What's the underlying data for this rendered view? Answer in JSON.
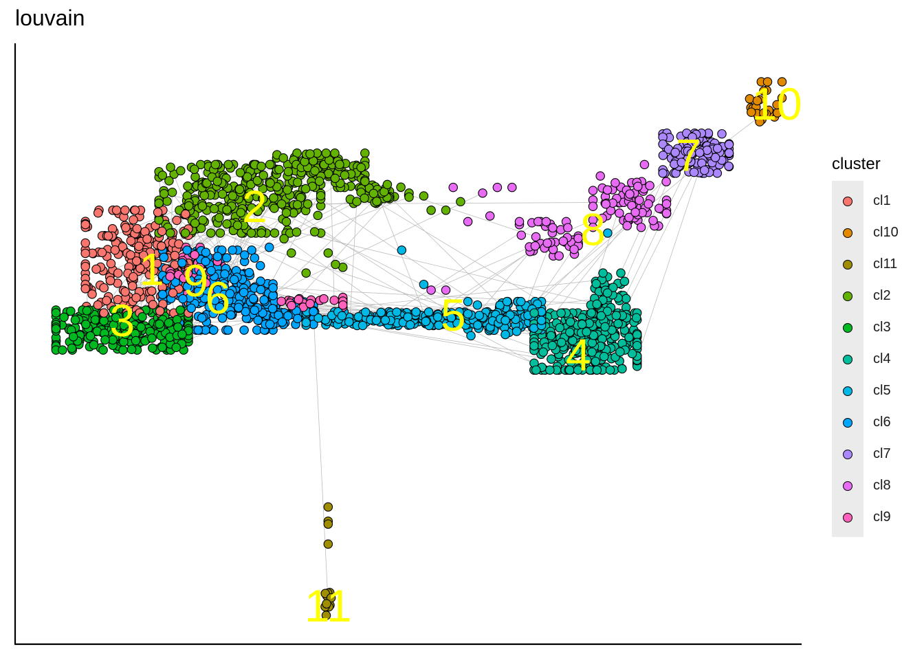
{
  "chart_data": {
    "type": "scatter",
    "title": "louvain",
    "xlabel": "",
    "ylabel": "",
    "grid": false,
    "legend": {
      "title": "cluster",
      "placement": "right"
    },
    "series": [
      {
        "name": "cl1",
        "color": "#F8766D",
        "label": "1",
        "label_at": [
          0.15,
          0.63
        ],
        "blobs": [
          {
            "c": [
              0.13,
              0.65
            ],
            "r": [
              0.07,
              0.09
            ],
            "n": 230
          }
        ],
        "points": []
      },
      {
        "name": "cl10",
        "color": "#E18A00",
        "label": "10",
        "label_at": [
          1.0,
          0.92
        ],
        "blobs": [
          {
            "c": [
              0.985,
              0.93
            ],
            "r": [
              0.022,
              0.035
            ],
            "n": 25
          }
        ],
        "points": []
      },
      {
        "name": "cl11",
        "color": "#9F8E00",
        "label": "11",
        "label_at": [
          0.39,
          0.04
        ],
        "blobs": [
          {
            "c": [
              0.39,
              0.05
            ],
            "r": [
              0.004,
              0.02
            ],
            "n": 10
          }
        ],
        "points": [
          [
            0.39,
            0.22
          ],
          [
            0.39,
            0.195
          ],
          [
            0.39,
            0.19
          ],
          [
            0.39,
            0.155
          ]
        ]
      },
      {
        "name": "cl2",
        "color": "#64B200",
        "label": "2",
        "label_at": [
          0.29,
          0.74
        ],
        "blobs": [
          {
            "c": [
              0.27,
              0.76
            ],
            "r": [
              0.11,
              0.06
            ],
            "n": 260
          },
          {
            "c": [
              0.38,
              0.81
            ],
            "r": [
              0.06,
              0.03
            ],
            "n": 90
          },
          {
            "c": [
              0.46,
              0.77
            ],
            "r": [
              0.04,
              0.018
            ],
            "n": 45
          }
        ],
        "points": [
          [
            0.33,
            0.69
          ],
          [
            0.34,
            0.665
          ],
          [
            0.36,
            0.63
          ],
          [
            0.39,
            0.665
          ],
          [
            0.4,
            0.645
          ],
          [
            0.41,
            0.64
          ],
          [
            0.53,
            0.74
          ],
          [
            0.55,
            0.74
          ],
          [
            0.52,
            0.765
          ],
          [
            0.57,
            0.755
          ]
        ]
      },
      {
        "name": "cl3",
        "color": "#00B81F",
        "label": "3",
        "label_at": [
          0.11,
          0.54
        ],
        "blobs": [
          {
            "c": [
              0.11,
              0.53
            ],
            "r": [
              0.09,
              0.035
            ],
            "n": 260
          }
        ],
        "points": []
      },
      {
        "name": "cl4",
        "color": "#00BE9C",
        "label": "4",
        "label_at": [
          0.73,
          0.48
        ],
        "blobs": [
          {
            "c": [
              0.74,
              0.51
            ],
            "r": [
              0.07,
              0.05
            ],
            "n": 280
          },
          {
            "c": [
              0.77,
              0.58
            ],
            "r": [
              0.025,
              0.05
            ],
            "n": 60
          }
        ],
        "points": []
      },
      {
        "name": "cl5",
        "color": "#00B8E5",
        "label": "5",
        "label_at": [
          0.56,
          0.55
        ],
        "blobs": [
          {
            "c": [
              0.52,
              0.55
            ],
            "r": [
              0.16,
              0.012
            ],
            "n": 240
          },
          {
            "c": [
              0.63,
              0.55
            ],
            "r": [
              0.05,
              0.03
            ],
            "n": 90
          }
        ],
        "points": [
          [
            0.49,
            0.67
          ],
          [
            0.52,
            0.61
          ],
          [
            0.77,
            0.7
          ]
        ]
      },
      {
        "name": "cl6",
        "color": "#00A5FF",
        "label": "6",
        "label_at": [
          0.24,
          0.58
        ],
        "blobs": [
          {
            "c": [
              0.24,
              0.6
            ],
            "r": [
              0.075,
              0.07
            ],
            "n": 250
          },
          {
            "c": [
              0.33,
              0.56
            ],
            "r": [
              0.04,
              0.02
            ],
            "n": 60
          }
        ],
        "points": [
          [
            0.31,
            0.675
          ]
        ]
      },
      {
        "name": "cl7",
        "color": "#AC88FF",
        "label": "7",
        "label_at": [
          0.88,
          0.83
        ],
        "blobs": [
          {
            "c": [
              0.89,
              0.84
            ],
            "r": [
              0.045,
              0.035
            ],
            "n": 110
          }
        ],
        "points": []
      },
      {
        "name": "cl8",
        "color": "#E76BF3",
        "label": "8",
        "label_at": [
          0.75,
          0.7
        ],
        "blobs": [
          {
            "c": [
              0.8,
              0.75
            ],
            "r": [
              0.05,
              0.04
            ],
            "n": 70
          },
          {
            "c": [
              0.69,
              0.69
            ],
            "r": [
              0.04,
              0.03
            ],
            "n": 40
          }
        ],
        "points": [
          [
            0.62,
            0.78
          ],
          [
            0.64,
            0.78
          ],
          [
            0.58,
            0.72
          ],
          [
            0.53,
            0.6
          ],
          [
            0.55,
            0.6
          ],
          [
            0.61,
            0.73
          ],
          [
            0.6,
            0.77
          ],
          [
            0.56,
            0.78
          ],
          [
            0.76,
            0.8
          ],
          [
            0.82,
            0.82
          ]
        ]
      },
      {
        "name": "cl9",
        "color": "#FF62BC",
        "label": "9",
        "label_at": [
          0.21,
          0.61
        ],
        "blobs": [
          {
            "c": [
              0.21,
              0.63
            ],
            "r": [
              0.035,
              0.045
            ],
            "n": 60
          },
          {
            "c": [
              0.35,
              0.58
            ],
            "r": [
              0.06,
              0.01
            ],
            "n": 25
          }
        ],
        "points": []
      }
    ]
  }
}
